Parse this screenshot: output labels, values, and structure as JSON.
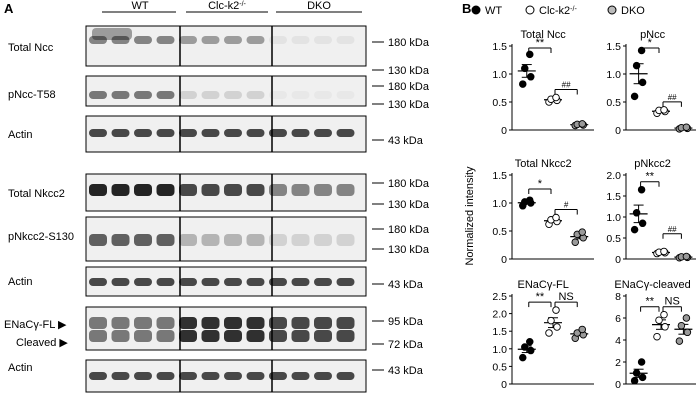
{
  "panel_a": {
    "letter": "A",
    "groups": [
      "WT",
      "Clc-k2",
      "DKO"
    ],
    "group_sup": "-/-",
    "rows": [
      {
        "label": "Total Ncc",
        "kda": [
          "180 kDa",
          "130 kDa"
        ],
        "smear": true
      },
      {
        "label": "pNcc-T58",
        "kda": [
          "180 kDa",
          "130 kDa"
        ]
      },
      {
        "label": "Actin",
        "kda": [
          "43 kDa"
        ]
      },
      {
        "label": "Total Nkcc2",
        "kda": [
          "180 kDa",
          "130 kDa"
        ]
      },
      {
        "label": "pNkcc2-S130",
        "kda": [
          "180 kDa",
          "130 kDa"
        ]
      },
      {
        "label": "Actin",
        "kda": [
          "43 kDa"
        ]
      },
      {
        "label": "ENaCγ-FL ▶",
        "label2": "Cleaved ▶",
        "kda": [
          "95 kDa",
          "72 kDa"
        ]
      },
      {
        "label": "Actin",
        "kda": [
          "43 kDa"
        ]
      }
    ]
  },
  "panel_b": {
    "letter": "B",
    "legend": [
      {
        "label": "WT",
        "marker": "filled"
      },
      {
        "label": "Clc-k2",
        "sup": "-/-",
        "marker": "open"
      },
      {
        "label": "DKO",
        "marker": "grey"
      }
    ],
    "ylabel": "Normalized intensity",
    "colors": {
      "wt": "#000000",
      "clc": "#ffffff",
      "dko": "#9a9a9a"
    }
  },
  "chart_data": [
    {
      "type": "scatter",
      "title": "Total Ncc",
      "ylim": [
        0,
        1.5
      ],
      "ticks": [
        "0",
        "0.5",
        "1.0",
        "1.5"
      ],
      "series": [
        {
          "name": "WT",
          "values": [
            0.82,
            0.95,
            1.1,
            1.35
          ]
        },
        {
          "name": "Clc-k2-/-",
          "values": [
            0.5,
            0.53,
            0.55,
            0.58
          ]
        },
        {
          "name": "DKO",
          "values": [
            0.08,
            0.09,
            0.1,
            0.11
          ]
        }
      ],
      "annotations": [
        "**",
        "##"
      ]
    },
    {
      "type": "scatter",
      "title": "pNcc",
      "ylim": [
        0,
        1.5
      ],
      "ticks": [
        "0",
        "0.5",
        "1.0",
        "1.5"
      ],
      "series": [
        {
          "name": "WT",
          "values": [
            0.6,
            0.85,
            1.15,
            1.42
          ]
        },
        {
          "name": "Clc-k2-/-",
          "values": [
            0.3,
            0.33,
            0.35,
            0.36
          ]
        },
        {
          "name": "DKO",
          "values": [
            0.02,
            0.03,
            0.04,
            0.05
          ]
        }
      ],
      "annotations": [
        "*",
        "##"
      ]
    },
    {
      "type": "scatter",
      "title": "Total Nkcc2",
      "ylim": [
        0,
        1.5
      ],
      "ticks": [
        "0",
        "0.5",
        "1.0",
        "1.5"
      ],
      "series": [
        {
          "name": "WT",
          "values": [
            0.95,
            1.0,
            1.02,
            1.05
          ]
        },
        {
          "name": "Clc-k2-/-",
          "values": [
            0.62,
            0.67,
            0.7,
            0.74
          ]
        },
        {
          "name": "DKO",
          "values": [
            0.3,
            0.38,
            0.44,
            0.48
          ]
        }
      ],
      "annotations": [
        "*",
        "#"
      ]
    },
    {
      "type": "scatter",
      "title": "pNkcc2",
      "ylim": [
        0,
        2
      ],
      "ticks": [
        "0",
        "0.5",
        "1.0",
        "1.5",
        "2.0"
      ],
      "series": [
        {
          "name": "WT",
          "values": [
            0.7,
            0.85,
            1.1,
            1.65
          ]
        },
        {
          "name": "Clc-k2-/-",
          "values": [
            0.13,
            0.15,
            0.16,
            0.18
          ]
        },
        {
          "name": "DKO",
          "values": [
            0.03,
            0.04,
            0.05,
            0.06
          ]
        }
      ],
      "annotations": [
        "**",
        "##"
      ]
    },
    {
      "type": "scatter",
      "title": "ENaCγ-FL",
      "ylim": [
        0,
        2.5
      ],
      "ticks": [
        "0",
        "0.5",
        "1.0",
        "1.5",
        "2.0",
        "2.5"
      ],
      "series": [
        {
          "name": "WT",
          "values": [
            0.75,
            0.95,
            1.05,
            1.2
          ]
        },
        {
          "name": "Clc-k2-/-",
          "values": [
            1.45,
            1.62,
            1.8,
            2.1
          ]
        },
        {
          "name": "DKO",
          "values": [
            1.3,
            1.4,
            1.45,
            1.55
          ]
        }
      ],
      "annotations": [
        "**",
        "NS"
      ]
    },
    {
      "type": "scatter",
      "title": "ENaCγ-cleaved",
      "ylim": [
        0,
        8
      ],
      "ticks": [
        "0",
        "2",
        "4",
        "6",
        "8"
      ],
      "series": [
        {
          "name": "WT",
          "values": [
            0.3,
            0.6,
            1.0,
            2.0
          ]
        },
        {
          "name": "Clc-k2-/-",
          "values": [
            4.3,
            5.2,
            5.8,
            6.3
          ]
        },
        {
          "name": "DKO",
          "values": [
            3.9,
            4.7,
            5.3,
            6.0
          ]
        }
      ],
      "annotations": [
        "**",
        "NS"
      ]
    }
  ]
}
